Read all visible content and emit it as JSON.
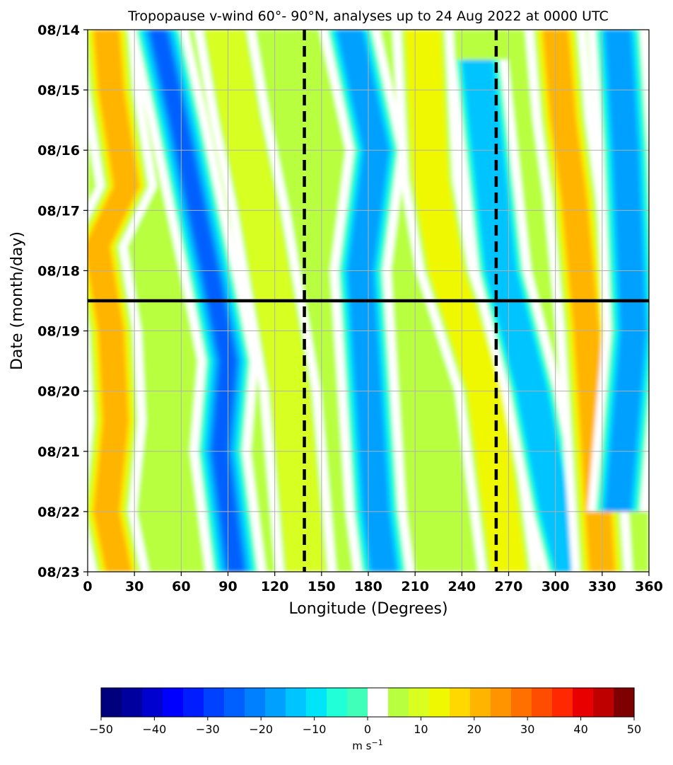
{
  "chart_data": {
    "type": "heatmap",
    "title": "Tropopause v-wind 60°- 90°N, analyses up to 24 Aug 2022 at 0000 UTC",
    "xlabel": "Longitude (Degrees)",
    "ylabel": "Date (month/day)",
    "xlim": [
      0,
      360
    ],
    "x_ticks": [
      "0",
      "30",
      "60",
      "90",
      "120",
      "150",
      "180",
      "210",
      "240",
      "270",
      "300",
      "330",
      "360"
    ],
    "y_ticks": [
      "08/14",
      "08/15",
      "08/16",
      "08/17",
      "08/18",
      "08/19",
      "08/20",
      "08/21",
      "08/22",
      "08/23"
    ],
    "y_order": "top-to-bottom",
    "grid": true,
    "vertical_dashed_lines_lon": [
      139,
      262
    ],
    "horizontal_line_day_offset": 4.5,
    "colorbar": {
      "min": -50,
      "max": 50,
      "ticks": [
        "−50",
        "−40",
        "−30",
        "−20",
        "−10",
        "0",
        "10",
        "20",
        "30",
        "40",
        "50"
      ],
      "unit_label": "m s",
      "unit_exponent": "−1",
      "colors": [
        "#00007f",
        "#00009f",
        "#0000cf",
        "#0000ff",
        "#001cff",
        "#0040ff",
        "#0060ff",
        "#0080ff",
        "#00a0ff",
        "#00c4ff",
        "#00e4f8",
        "#20ffd8",
        "#40ffb8",
        "#ffffff",
        "#b8ff40",
        "#d8ff20",
        "#f0f800",
        "#ffd800",
        "#ffb400",
        "#ff9400",
        "#ff7000",
        "#ff4c00",
        "#ff2800",
        "#e80000",
        "#bf0000",
        "#7f0000"
      ],
      "white_band": [
        -2.5,
        2.5
      ]
    },
    "bands": [
      {
        "name": "warm-band-1",
        "value": 22,
        "ridge": [
          [
            12,
            0
          ],
          [
            15,
            1
          ],
          [
            25,
            2.6
          ],
          [
            6,
            3.6
          ],
          [
            15,
            5
          ],
          [
            18,
            6.5
          ],
          [
            12,
            8
          ],
          [
            20,
            9
          ]
        ]
      },
      {
        "name": "cold-band-1",
        "value": -28,
        "ridge": [
          [
            45,
            0
          ],
          [
            58,
            1.5
          ],
          [
            70,
            3
          ],
          [
            80,
            4.2
          ],
          [
            90,
            5.5
          ],
          [
            85,
            7
          ],
          [
            90,
            8
          ],
          [
            95,
            9
          ]
        ]
      },
      {
        "name": "warm-band-2",
        "value": 10,
        "ridge": [
          [
            88,
            0
          ],
          [
            98,
            1.5
          ],
          [
            110,
            3
          ],
          [
            120,
            4.5
          ],
          [
            130,
            6
          ],
          [
            135,
            7.5
          ],
          [
            140,
            9
          ]
        ]
      },
      {
        "name": "cold-band-2",
        "value": -22,
        "ridge": [
          [
            168,
            0
          ],
          [
            185,
            2
          ],
          [
            175,
            4
          ],
          [
            180,
            6
          ],
          [
            185,
            8
          ],
          [
            190,
            9
          ]
        ]
      },
      {
        "name": "warm-band-3",
        "value": 15,
        "ridge": [
          [
            215,
            0
          ],
          [
            220,
            2.5
          ],
          [
            230,
            4
          ],
          [
            255,
            6
          ],
          [
            265,
            8
          ],
          [
            270,
            9
          ]
        ]
      },
      {
        "name": "cold-band-3",
        "value": -18,
        "ridge": [
          [
            250,
            0.5
          ],
          [
            265,
            4
          ],
          [
            285,
            6
          ],
          [
            300,
            8
          ],
          [
            310,
            9
          ]
        ]
      },
      {
        "name": "warm-band-4",
        "value": 20,
        "ridge": [
          [
            300,
            0
          ],
          [
            305,
            1.5
          ],
          [
            312,
            2.8
          ],
          [
            320,
            5
          ],
          [
            325,
            7
          ],
          [
            330,
            9
          ]
        ]
      },
      {
        "name": "cold-band-4",
        "value": -20,
        "ridge": [
          [
            340,
            0
          ],
          [
            345,
            2
          ],
          [
            350,
            5
          ],
          [
            340,
            8
          ]
        ]
      }
    ]
  }
}
